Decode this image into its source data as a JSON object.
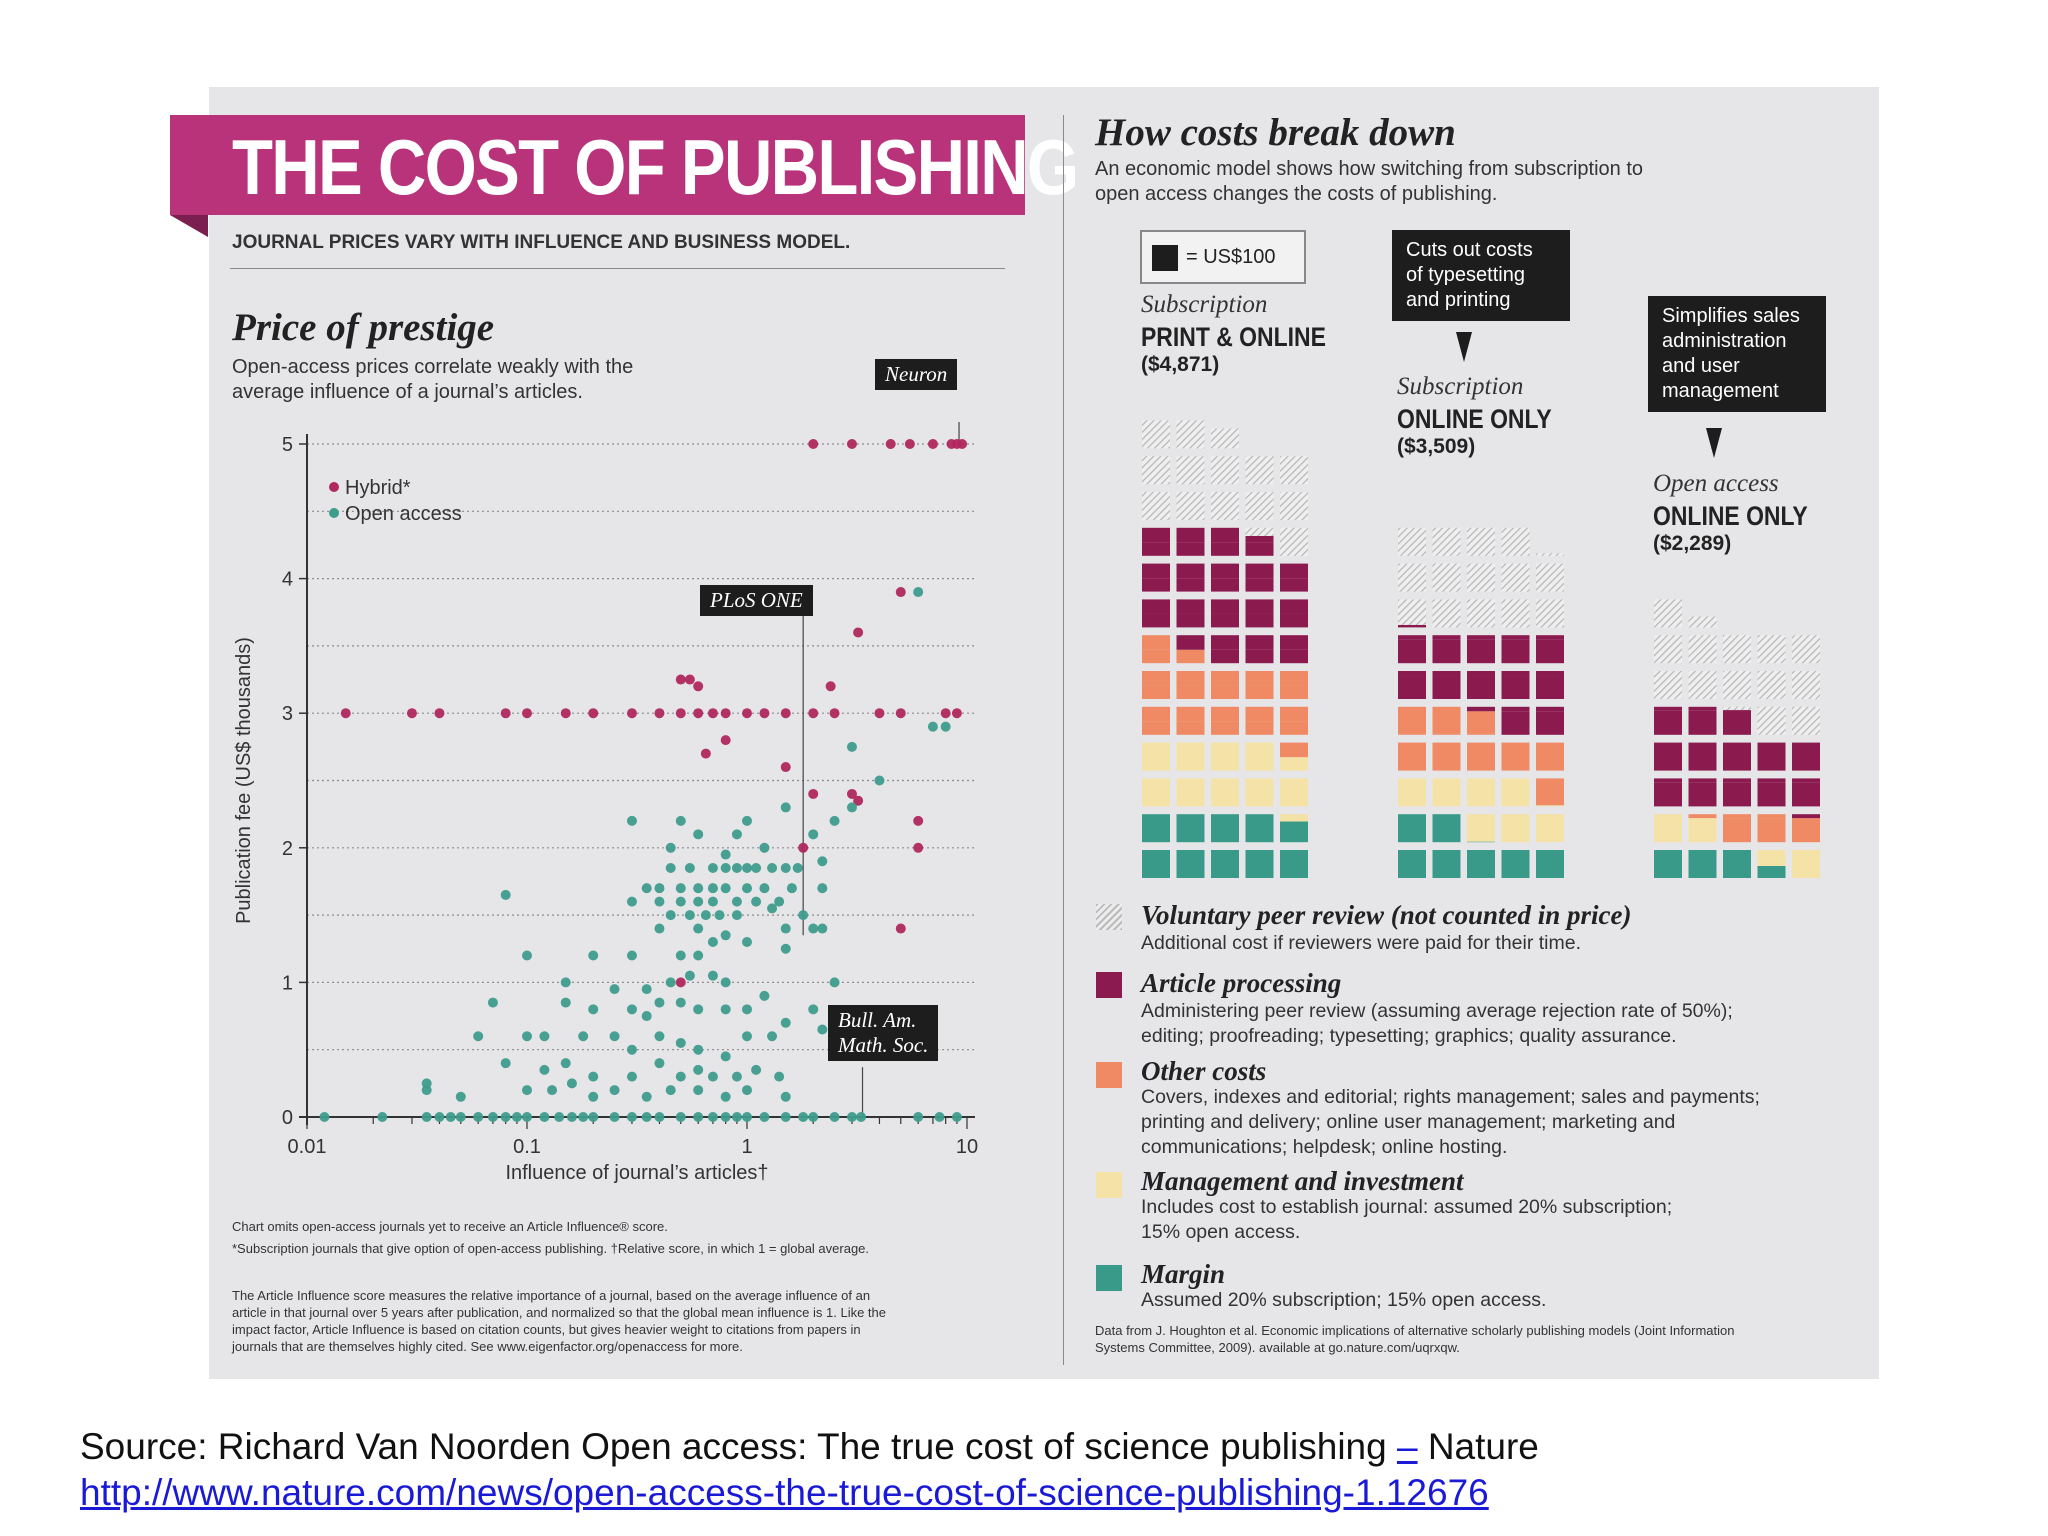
{
  "infographic": {
    "title": "THE COST OF PUBLISHING",
    "subtitle": "JOURNAL PRICES VARY WITH INFLUENCE AND BUSINESS MODEL."
  },
  "left": {
    "heading": "Price of prestige",
    "desc_line1": "Open-access prices correlate weakly with the",
    "desc_line2": "average influence of a journal’s articles.",
    "annotations": {
      "neuron": "Neuron",
      "plos": "PLoS ONE",
      "bull1": "Bull. Am.",
      "bull2": "Math. Soc."
    },
    "notes": {
      "n1": "Chart omits open-access journals yet to receive an Article Influence® score.",
      "n2": "*Subscription journals that give option of open-access publishing. †Relative score, in which 1 = global average.",
      "n3a": "The Article Influence score measures the relative importance of a journal, based on the average influence of an",
      "n3b": "article in that journal over 5 years after publication, and normalized so that the global mean influence is 1. Like the",
      "n3c": "impact factor, Article Influence is based on citation counts, but gives heavier weight to citations from papers in",
      "n3d": "journals that are themselves highly cited. See www.eigenfactor.org/openaccess for more."
    }
  },
  "right": {
    "heading": "How costs break down",
    "desc_line1": "An economic model shows how switching from subscription to",
    "desc_line2": "open access changes the costs of publishing.",
    "key": "= US$100",
    "callouts": {
      "c1": [
        "Cuts out costs",
        "of typesetting",
        "and printing"
      ],
      "c2": [
        "Simplifies sales",
        "administration",
        "and user",
        "management"
      ]
    },
    "columns": [
      {
        "type": "Subscription",
        "name": "PRINT & ONLINE",
        "price": "($4,871)"
      },
      {
        "type": "Subscription",
        "name": "ONLINE ONLY",
        "price": "($3,509)"
      },
      {
        "type": "Open access",
        "name": "ONLINE ONLY",
        "price": "($2,289)"
      }
    ],
    "legend": [
      {
        "title": "Voluntary peer review (not counted in price)",
        "desc": [
          "Additional cost if reviewers were paid for their time."
        ],
        "color": "hatch"
      },
      {
        "title": "Article processing",
        "desc": [
          "Administering peer review (assuming average rejection rate of 50%);",
          "editing; proofreading; typesetting; graphics; quality assurance."
        ],
        "color": "#8b1a4f"
      },
      {
        "title": "Other costs",
        "desc": [
          "Covers, indexes and editorial; rights management; sales and payments;",
          "printing and delivery; online user management; marketing and",
          "communications; helpdesk; online hosting."
        ],
        "color": "#f08a64"
      },
      {
        "title": "Management and investment",
        "desc": [
          "Includes cost to establish journal: assumed 20% subscription;",
          "15% open access."
        ],
        "color": "#f5e2a6"
      },
      {
        "title": "Margin",
        "desc": [
          "Assumed 20% subscription; 15% open access."
        ],
        "color": "#3a9a8a"
      }
    ],
    "data_note_a": "Data from J. Houghton et al. Economic implications of alternative scholarly publishing models (Joint Information",
    "data_note_b": "Systems Committee, 2009). available at go.nature.com/uqrxqw."
  },
  "source": {
    "line1_a": "Source: Richard Van Noorden Open access: The true cost of science publishing ",
    "line1_dash": "–",
    "line1_b": " Nature",
    "link": "http://www.nature.com/news/open-access-the-true-cost-of-science-publishing-1.12676"
  },
  "colors": {
    "hybrid": "#b0285f",
    "open_access": "#3e9c8c",
    "article": "#8b1a4f",
    "other": "#f08a64",
    "management": "#f5e2a6",
    "margin": "#3a9a8a",
    "title_band": "#b8337a"
  },
  "chart_data": [
    {
      "type": "scatter",
      "title": "Price of prestige",
      "xlabel": "Influence of journal’s articles†",
      "ylabel": "Publication fee (US$ thousands)",
      "xscale": "log",
      "xlim": [
        0.01,
        10
      ],
      "ylim": [
        0,
        5
      ],
      "xticks": [
        "0.01",
        "0.1",
        "1",
        "10"
      ],
      "yticks": [
        "0",
        "1",
        "2",
        "3",
        "4",
        "5"
      ],
      "legend": "top-left",
      "grid": true,
      "series": [
        {
          "name": "Hybrid*",
          "color": "#b0285f",
          "points": [
            [
              2.0,
              5.0
            ],
            [
              3.0,
              5.0
            ],
            [
              4.5,
              5.0
            ],
            [
              5.5,
              5.0
            ],
            [
              7.0,
              5.0
            ],
            [
              8.5,
              5.0
            ],
            [
              9.0,
              5.0
            ],
            [
              9.5,
              5.0
            ],
            [
              5.0,
              3.9
            ],
            [
              3.2,
              3.6
            ],
            [
              0.5,
              3.25
            ],
            [
              0.55,
              3.25
            ],
            [
              0.6,
              3.2
            ],
            [
              2.4,
              3.2
            ],
            [
              0.015,
              3.0
            ],
            [
              0.03,
              3.0
            ],
            [
              0.04,
              3.0
            ],
            [
              0.08,
              3.0
            ],
            [
              0.1,
              3.0
            ],
            [
              0.15,
              3.0
            ],
            [
              0.2,
              3.0
            ],
            [
              0.3,
              3.0
            ],
            [
              0.4,
              3.0
            ],
            [
              0.5,
              3.0
            ],
            [
              0.6,
              3.0
            ],
            [
              0.7,
              3.0
            ],
            [
              0.8,
              3.0
            ],
            [
              1.0,
              3.0
            ],
            [
              1.2,
              3.0
            ],
            [
              1.5,
              3.0
            ],
            [
              2.0,
              3.0
            ],
            [
              2.5,
              3.0
            ],
            [
              4.0,
              3.0
            ],
            [
              5.0,
              3.0
            ],
            [
              8.0,
              3.0
            ],
            [
              9.0,
              3.0
            ],
            [
              0.65,
              2.7
            ],
            [
              0.8,
              2.8
            ],
            [
              1.5,
              2.6
            ],
            [
              2.0,
              2.4
            ],
            [
              3.0,
              2.4
            ],
            [
              3.2,
              2.35
            ],
            [
              6.0,
              2.2
            ],
            [
              1.8,
              2.0
            ],
            [
              6.0,
              2.0
            ],
            [
              5.0,
              1.4
            ],
            [
              0.5,
              1.0
            ]
          ]
        },
        {
          "name": "Open access",
          "color": "#3e9c8c",
          "points": [
            [
              6.0,
              3.9
            ],
            [
              7.0,
              2.9
            ],
            [
              8.0,
              2.9
            ],
            [
              3.0,
              2.75
            ],
            [
              4.0,
              2.5
            ],
            [
              0.3,
              2.2
            ],
            [
              0.5,
              2.2
            ],
            [
              1.0,
              2.2
            ],
            [
              1.5,
              2.3
            ],
            [
              2.5,
              2.2
            ],
            [
              3.0,
              2.3
            ],
            [
              0.6,
              2.1
            ],
            [
              0.9,
              2.1
            ],
            [
              1.2,
              2.0
            ],
            [
              2.0,
              2.1
            ],
            [
              0.45,
              2.0
            ],
            [
              0.8,
              1.95
            ],
            [
              2.2,
              1.9
            ],
            [
              0.45,
              1.85
            ],
            [
              0.55,
              1.85
            ],
            [
              0.7,
              1.85
            ],
            [
              0.8,
              1.85
            ],
            [
              0.9,
              1.85
            ],
            [
              1.0,
              1.85
            ],
            [
              1.1,
              1.85
            ],
            [
              1.3,
              1.85
            ],
            [
              1.5,
              1.85
            ],
            [
              1.7,
              1.85
            ],
            [
              0.35,
              1.7
            ],
            [
              0.4,
              1.7
            ],
            [
              0.5,
              1.7
            ],
            [
              0.6,
              1.7
            ],
            [
              0.7,
              1.7
            ],
            [
              0.8,
              1.7
            ],
            [
              1.0,
              1.7
            ],
            [
              1.2,
              1.7
            ],
            [
              1.6,
              1.7
            ],
            [
              2.2,
              1.7
            ],
            [
              0.08,
              1.65
            ],
            [
              0.3,
              1.6
            ],
            [
              0.4,
              1.6
            ],
            [
              0.5,
              1.6
            ],
            [
              0.6,
              1.6
            ],
            [
              0.7,
              1.6
            ],
            [
              0.9,
              1.6
            ],
            [
              1.1,
              1.6
            ],
            [
              1.4,
              1.6
            ],
            [
              0.45,
              1.5
            ],
            [
              0.55,
              1.5
            ],
            [
              0.65,
              1.5
            ],
            [
              0.75,
              1.5
            ],
            [
              0.9,
              1.5
            ],
            [
              1.3,
              1.55
            ],
            [
              1.8,
              1.5
            ],
            [
              0.4,
              1.4
            ],
            [
              0.6,
              1.4
            ],
            [
              0.8,
              1.35
            ],
            [
              1.5,
              1.4
            ],
            [
              2.0,
              1.4
            ],
            [
              2.2,
              1.4
            ],
            [
              0.1,
              1.2
            ],
            [
              0.2,
              1.2
            ],
            [
              0.5,
              1.2
            ],
            [
              0.6,
              1.2
            ],
            [
              0.3,
              1.2
            ],
            [
              0.7,
              1.3
            ],
            [
              1.0,
              1.3
            ],
            [
              1.5,
              1.25
            ],
            [
              0.15,
              1.0
            ],
            [
              0.25,
              0.95
            ],
            [
              0.35,
              0.95
            ],
            [
              0.45,
              1.0
            ],
            [
              0.55,
              1.05
            ],
            [
              0.7,
              1.05
            ],
            [
              0.8,
              1.0
            ],
            [
              1.2,
              0.9
            ],
            [
              2.5,
              1.0
            ],
            [
              0.07,
              0.85
            ],
            [
              0.15,
              0.85
            ],
            [
              0.2,
              0.8
            ],
            [
              0.3,
              0.8
            ],
            [
              0.35,
              0.75
            ],
            [
              0.4,
              0.85
            ],
            [
              0.5,
              0.85
            ],
            [
              0.6,
              0.8
            ],
            [
              0.8,
              0.8
            ],
            [
              1.0,
              0.8
            ],
            [
              1.5,
              0.7
            ],
            [
              2.0,
              0.8
            ],
            [
              2.2,
              0.65
            ],
            [
              2.5,
              0.65
            ],
            [
              0.06,
              0.6
            ],
            [
              0.1,
              0.6
            ],
            [
              0.12,
              0.6
            ],
            [
              0.18,
              0.6
            ],
            [
              0.25,
              0.6
            ],
            [
              0.3,
              0.5
            ],
            [
              0.4,
              0.6
            ],
            [
              0.5,
              0.55
            ],
            [
              0.6,
              0.5
            ],
            [
              0.8,
              0.45
            ],
            [
              1.0,
              0.6
            ],
            [
              1.3,
              0.6
            ],
            [
              0.08,
              0.4
            ],
            [
              0.12,
              0.35
            ],
            [
              0.15,
              0.4
            ],
            [
              0.2,
              0.3
            ],
            [
              0.3,
              0.3
            ],
            [
              0.4,
              0.4
            ],
            [
              0.5,
              0.3
            ],
            [
              0.6,
              0.35
            ],
            [
              0.7,
              0.3
            ],
            [
              0.9,
              0.3
            ],
            [
              1.1,
              0.35
            ],
            [
              1.4,
              0.3
            ],
            [
              0.035,
              0.25
            ],
            [
              0.035,
              0.2
            ],
            [
              0.05,
              0.15
            ],
            [
              0.1,
              0.2
            ],
            [
              0.13,
              0.2
            ],
            [
              0.16,
              0.25
            ],
            [
              0.2,
              0.15
            ],
            [
              0.25,
              0.2
            ],
            [
              0.35,
              0.15
            ],
            [
              0.45,
              0.2
            ],
            [
              0.6,
              0.2
            ],
            [
              0.8,
              0.15
            ],
            [
              1.0,
              0.2
            ],
            [
              1.5,
              0.15
            ],
            [
              0.012,
              0.0
            ],
            [
              0.022,
              0.0
            ],
            [
              0.035,
              0.0
            ],
            [
              0.04,
              0.0
            ],
            [
              0.045,
              0.0
            ],
            [
              0.05,
              0.0
            ],
            [
              0.06,
              0.0
            ],
            [
              0.07,
              0.0
            ],
            [
              0.08,
              0.0
            ],
            [
              0.09,
              0.0
            ],
            [
              0.1,
              0.0
            ],
            [
              0.12,
              0.0
            ],
            [
              0.14,
              0.0
            ],
            [
              0.16,
              0.0
            ],
            [
              0.18,
              0.0
            ],
            [
              0.2,
              0.0
            ],
            [
              0.25,
              0.0
            ],
            [
              0.3,
              0.0
            ],
            [
              0.35,
              0.0
            ],
            [
              0.4,
              0.0
            ],
            [
              0.5,
              0.0
            ],
            [
              0.6,
              0.0
            ],
            [
              0.7,
              0.0
            ],
            [
              0.8,
              0.0
            ],
            [
              0.9,
              0.0
            ],
            [
              1.0,
              0.0
            ],
            [
              1.2,
              0.0
            ],
            [
              1.5,
              0.0
            ],
            [
              1.8,
              0.0
            ],
            [
              2.0,
              0.0
            ],
            [
              2.5,
              0.0
            ],
            [
              3.0,
              0.0
            ],
            [
              3.3,
              0.0
            ],
            [
              6.0,
              0.0
            ],
            [
              7.5,
              0.0
            ],
            [
              9.0,
              0.0
            ]
          ]
        }
      ]
    },
    {
      "type": "bar",
      "title": "How costs break down",
      "unit": "= US$100",
      "categories": [
        "PRINT & ONLINE ($4,871)",
        "ONLINE ONLY ($3,509)",
        "ONLINE ONLY ($2,289)"
      ],
      "stacked": true,
      "series": [
        {
          "name": "Margin",
          "values": [
            974,
            702,
            343
          ],
          "color": "#3a9a8a"
        },
        {
          "name": "Management and investment",
          "values": [
            974,
            702,
            343
          ],
          "color": "#f5e2a6"
        },
        {
          "name": "Other costs",
          "values": [
            1200,
            880,
            300
          ],
          "color": "#f08a64"
        },
        {
          "name": "Article processing",
          "values": [
            1723,
            1225,
            1303
          ],
          "color": "#8b1a4f"
        },
        {
          "name": "Voluntary peer review (not counted in price)",
          "values": [
            1400,
            1400,
            1350
          ],
          "color": "hatch"
        }
      ]
    }
  ]
}
